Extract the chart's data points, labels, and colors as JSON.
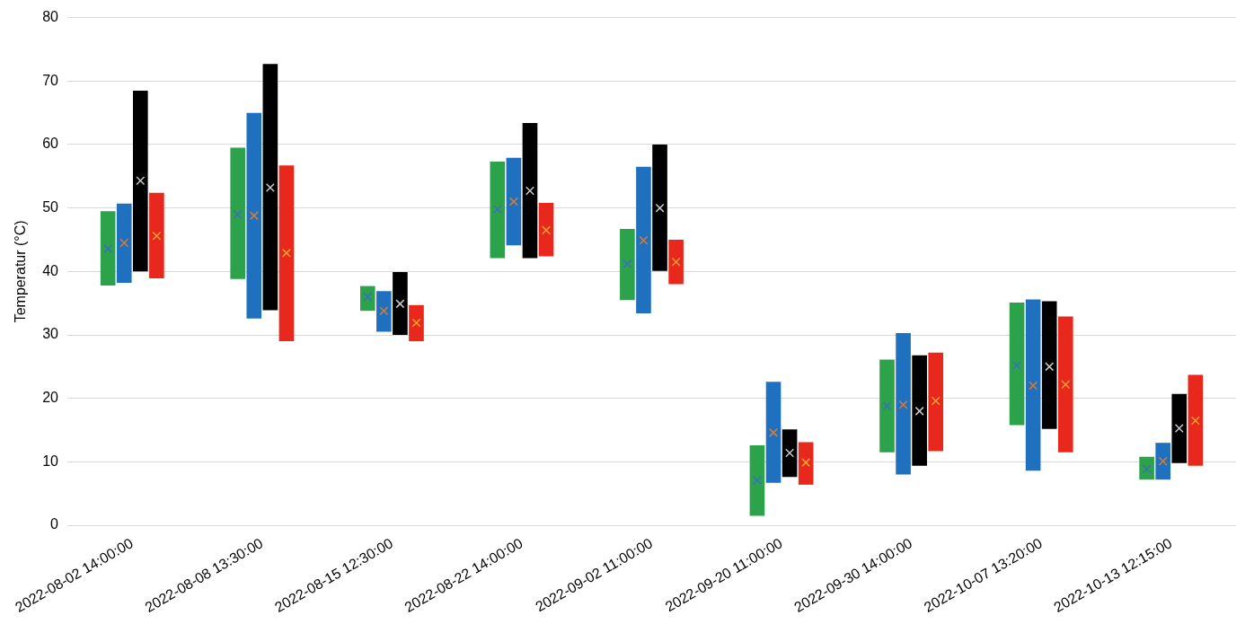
{
  "chart_data": {
    "type": "bar",
    "ylabel": "Temperatur (°C)",
    "categories": [
      "2022-08-02 14:00:00",
      "2022-08-08 13:30:00",
      "2022-08-15 12:30:00",
      "2022-08-22 14:00:00",
      "2022-09-02 11:00:00",
      "2022-09-20 11:00:00",
      "2022-09-30 14:00:00",
      "2022-10-07 13:20:00",
      "2022-10-13 12:15:00"
    ],
    "ylim": [
      0,
      80
    ],
    "yticks": [
      0,
      10,
      20,
      30,
      40,
      50,
      60,
      70,
      80
    ],
    "grid": "y",
    "legend": false,
    "marker": "cross",
    "series": [
      {
        "color": "#2ca24a",
        "base": [
          37.8,
          38.8,
          33.8,
          42.1,
          35.5,
          1.5,
          11.5,
          15.8,
          7.2
        ],
        "values": [
          11.7,
          20.7,
          3.9,
          15.2,
          11.2,
          11.1,
          14.6,
          19.3,
          3.6
        ]
      },
      {
        "color": "#2070c0",
        "base": [
          38.2,
          32.6,
          30.5,
          44.1,
          33.4,
          6.7,
          8.0,
          8.6,
          7.2
        ],
        "values": [
          12.5,
          32.4,
          6.4,
          13.8,
          23.1,
          15.9,
          22.3,
          27.0,
          5.8
        ]
      },
      {
        "color": "#000000",
        "base": [
          40.0,
          33.9,
          30.0,
          42.1,
          40.1,
          7.6,
          9.4,
          15.2,
          9.8
        ],
        "values": [
          28.5,
          38.8,
          9.9,
          21.3,
          19.9,
          7.5,
          17.4,
          20.1,
          10.9
        ]
      },
      {
        "color": "#e8281c",
        "base": [
          38.9,
          29.0,
          29.0,
          42.4,
          38.0,
          6.4,
          11.7,
          11.5,
          9.4
        ],
        "values": [
          13.5,
          27.7,
          5.7,
          8.4,
          7.0,
          6.7,
          15.5,
          21.4,
          14.3
        ]
      },
      {
        "type": "scatter",
        "color": "#3a6fc0",
        "values": [
          43.6,
          49.0,
          36.0,
          49.8,
          41.2,
          7.1,
          18.8,
          25.2,
          8.9
        ]
      },
      {
        "type": "scatter",
        "color": "#e07b2a",
        "values": [
          44.5,
          48.8,
          33.8,
          51.0,
          44.9,
          14.6,
          19.0,
          22.0,
          10.1
        ]
      },
      {
        "type": "scatter",
        "color": "#c8c8c8",
        "values": [
          54.3,
          53.2,
          34.9,
          52.7,
          50.0,
          11.4,
          18.0,
          25.0,
          15.3
        ]
      },
      {
        "type": "scatter",
        "color": "#f0a030",
        "values": [
          45.6,
          42.9,
          31.9,
          46.5,
          41.5,
          9.9,
          19.6,
          22.2,
          16.5
        ]
      }
    ]
  }
}
